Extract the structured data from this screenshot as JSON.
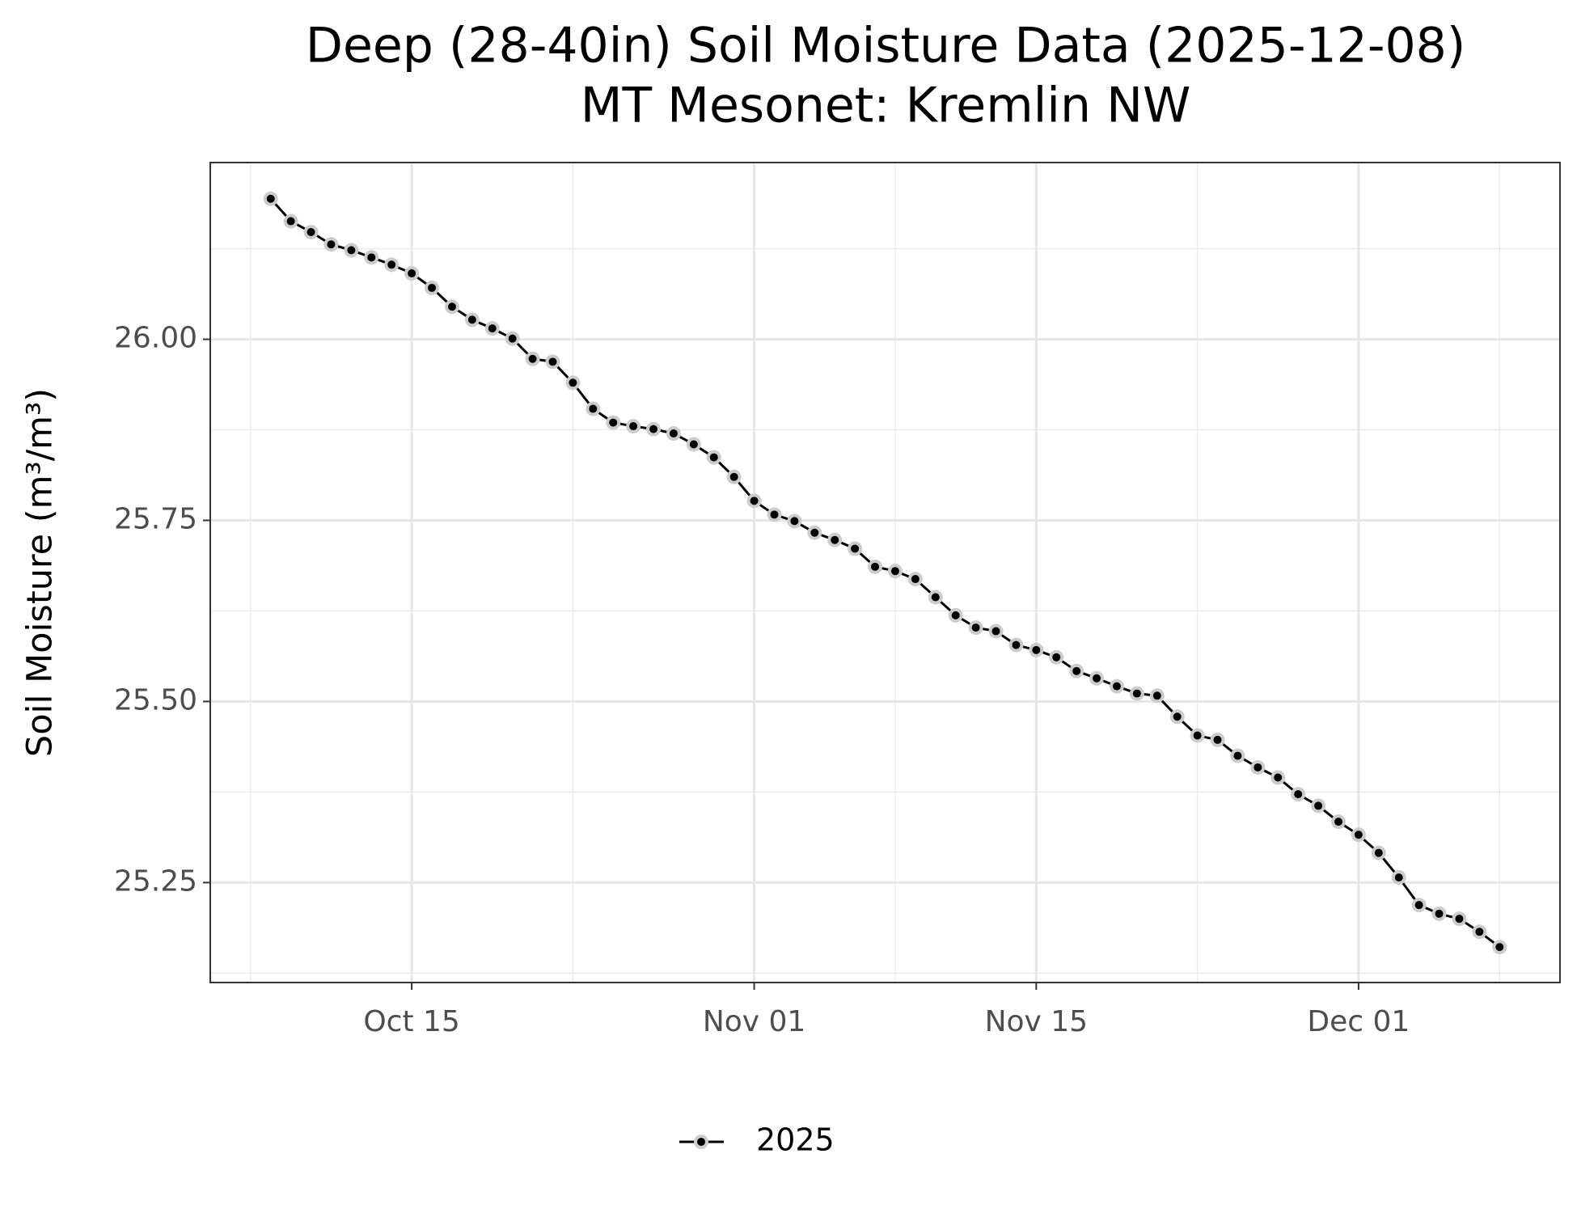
{
  "chart_data": {
    "type": "line",
    "title": "Deep (28-40in) Soil Moisture Data (2025-12-08)",
    "subtitle": "MT Mesonet: Kremlin NW",
    "y_label": "Soil Moisture (m³/m³)",
    "x": [
      "2025-10-08",
      "2025-10-09",
      "2025-10-10",
      "2025-10-11",
      "2025-10-12",
      "2025-10-13",
      "2025-10-14",
      "2025-10-15",
      "2025-10-16",
      "2025-10-17",
      "2025-10-18",
      "2025-10-19",
      "2025-10-20",
      "2025-10-21",
      "2025-10-22",
      "2025-10-23",
      "2025-10-24",
      "2025-10-25",
      "2025-10-26",
      "2025-10-27",
      "2025-10-28",
      "2025-10-29",
      "2025-10-30",
      "2025-10-31",
      "2025-11-01",
      "2025-11-02",
      "2025-11-03",
      "2025-11-04",
      "2025-11-05",
      "2025-11-06",
      "2025-11-07",
      "2025-11-08",
      "2025-11-09",
      "2025-11-10",
      "2025-11-11",
      "2025-11-12",
      "2025-11-13",
      "2025-11-14",
      "2025-11-15",
      "2025-11-16",
      "2025-11-17",
      "2025-11-18",
      "2025-11-19",
      "2025-11-20",
      "2025-11-21",
      "2025-11-22",
      "2025-11-23",
      "2025-11-24",
      "2025-11-25",
      "2025-11-26",
      "2025-11-27",
      "2025-11-28",
      "2025-11-29",
      "2025-11-30",
      "2025-12-01",
      "2025-12-02",
      "2025-12-03",
      "2025-12-04",
      "2025-12-05",
      "2025-12-06",
      "2025-12-07",
      "2025-12-08"
    ],
    "series": [
      {
        "name": "2025",
        "color": "#000000",
        "marker_color": "#cccccc",
        "values": [
          26.194,
          26.163,
          26.148,
          26.131,
          26.123,
          26.113,
          26.103,
          26.091,
          26.071,
          26.045,
          26.027,
          26.015,
          26.001,
          25.973,
          25.969,
          25.94,
          25.904,
          25.885,
          25.88,
          25.876,
          25.87,
          25.855,
          25.837,
          25.81,
          25.777,
          25.758,
          25.749,
          25.733,
          25.723,
          25.711,
          25.686,
          25.68,
          25.669,
          25.644,
          25.619,
          25.602,
          25.597,
          25.578,
          25.571,
          25.561,
          25.542,
          25.532,
          25.521,
          25.511,
          25.508,
          25.479,
          25.453,
          25.447,
          25.425,
          25.409,
          25.395,
          25.372,
          25.356,
          25.334,
          25.316,
          25.291,
          25.257,
          25.219,
          25.207,
          25.2,
          25.182,
          25.161
        ]
      }
    ],
    "xlim": [
      "2025-10-05",
      "2025-12-11"
    ],
    "xticks": [
      {
        "value": "2025-10-15",
        "label": "Oct 15"
      },
      {
        "value": "2025-11-01",
        "label": "Nov 01"
      },
      {
        "value": "2025-11-15",
        "label": "Nov 15"
      },
      {
        "value": "2025-12-01",
        "label": "Dec 01"
      }
    ],
    "xminorticks": [
      "2025-10-07",
      "2025-10-23",
      "2025-11-08",
      "2025-11-23",
      "2025-12-08"
    ],
    "ylim": [
      25.112,
      26.244
    ],
    "yticks": [
      {
        "value": 25.25,
        "label": "25.25"
      },
      {
        "value": 25.5,
        "label": "25.50"
      },
      {
        "value": 25.75,
        "label": "25.75"
      },
      {
        "value": 26,
        "label": "26.00"
      }
    ],
    "yminorticks": [
      25.125,
      25.375,
      25.625,
      25.875,
      26.125
    ],
    "grid": true,
    "legend": "bottom"
  }
}
